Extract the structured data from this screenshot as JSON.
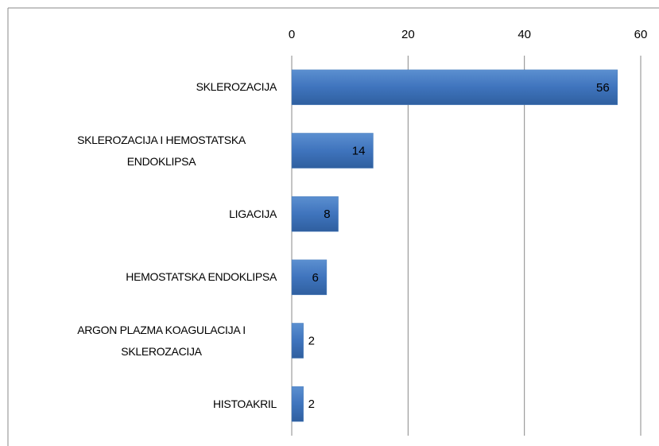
{
  "chart_data": {
    "type": "bar",
    "orientation": "horizontal",
    "categories": [
      "SKLEROZACIJA",
      "SKLEROZACIJA I HEMOSTATSKA ENDOKLIPSA",
      "LIGACIJA",
      "HEMOSTATSKA ENDOKLIPSA",
      "ARGON PLAZMA KOAGULACIJA I SKLEROZACIJA",
      "HISTOAKRIL"
    ],
    "values": [
      56,
      14,
      8,
      6,
      2,
      2
    ],
    "color": "#4a7ebb",
    "xlim": [
      0,
      60
    ],
    "xticks": [
      0,
      20,
      40,
      60
    ],
    "grid": true
  }
}
